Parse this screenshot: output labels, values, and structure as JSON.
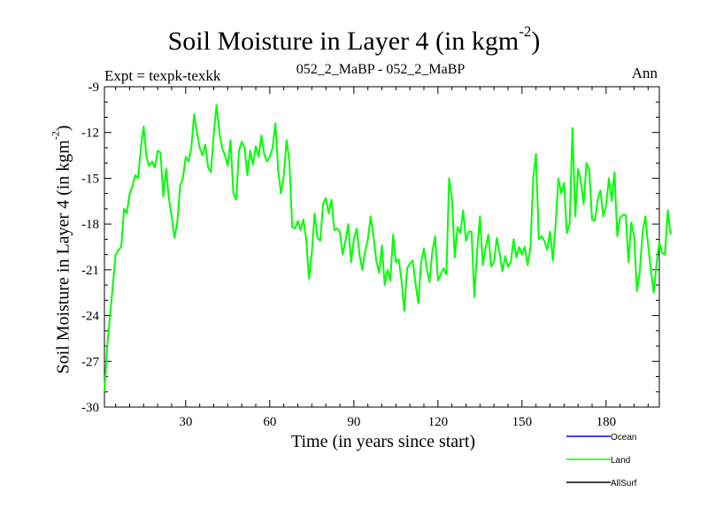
{
  "chart_data": {
    "type": "line",
    "title": "Soil Moisture in Layer 4 (in kgm",
    "title_exp": "-2",
    "subtitle": "052_2_MaBP - 052_2_MaBP",
    "expt_label": "Expt = texpk-texkk",
    "season": "Ann",
    "xlabel": "Time (in years since start)",
    "ylabel": "Soil Moisture in Layer 4 (in kgm",
    "ylabel_exp": "-2",
    "ylabel_close": ")",
    "title_close": ")",
    "xlim": [
      1,
      199
    ],
    "ylim": [
      -30,
      -9
    ],
    "x_ticks": [
      30,
      60,
      90,
      120,
      150,
      180
    ],
    "x_tick_labels": [
      "30",
      "60",
      "90",
      "120",
      "150",
      "180"
    ],
    "y_ticks": [
      -30,
      -27,
      -24,
      -21,
      -18,
      -15,
      -12,
      -9
    ],
    "y_tick_labels": [
      "-30",
      "-27",
      "-24",
      "-21",
      "-18",
      "-15",
      "-12",
      "-9"
    ],
    "legend": [
      {
        "name": "Ocean",
        "color": "#0000ff"
      },
      {
        "name": "Land",
        "color": "#00ff00"
      },
      {
        "name": "AllSurf",
        "color": "#000000"
      }
    ],
    "series": [
      {
        "name": "Land",
        "color": "#00ff00",
        "x_start": 1,
        "values": [
          -29.0,
          -26.0,
          -24.0,
          -22.0,
          -20.0,
          -19.7,
          -19.5,
          -17.0,
          -17.3,
          -16.0,
          -15.5,
          -14.8,
          -15.0,
          -13.0,
          -11.6,
          -13.6,
          -14.2,
          -13.9,
          -14.3,
          -13.2,
          -13.3,
          -16.2,
          -14.4,
          -16.3,
          -17.5,
          -18.9,
          -17.9,
          -15.5,
          -15.0,
          -13.6,
          -13.9,
          -13.0,
          -10.8,
          -12.0,
          -13.0,
          -13.5,
          -12.8,
          -14.3,
          -14.6,
          -12.1,
          -10.2,
          -12.0,
          -13.0,
          -13.5,
          -14.2,
          -12.5,
          -16.0,
          -16.4,
          -13.2,
          -12.6,
          -13.0,
          -14.8,
          -13.2,
          -14.1,
          -12.9,
          -13.6,
          -12.2,
          -13.4,
          -13.9,
          -13.6,
          -13.0,
          -11.4,
          -14.5,
          -16.0,
          -14.8,
          -12.5,
          -13.9,
          -18.2,
          -18.3,
          -17.8,
          -18.4,
          -17.7,
          -19.0,
          -21.6,
          -19.9,
          -17.3,
          -18.9,
          -19.1,
          -16.7,
          -16.3,
          -17.3,
          -16.4,
          -18.4,
          -18.3,
          -18.5,
          -20.0,
          -19.1,
          -18.0,
          -20.5,
          -19.0,
          -18.3,
          -20.0,
          -21.0,
          -19.8,
          -19.0,
          -17.5,
          -18.8,
          -20.4,
          -21.2,
          -19.4,
          -22.0,
          -21.0,
          -21.7,
          -18.7,
          -20.5,
          -20.3,
          -21.7,
          -23.7,
          -20.9,
          -20.6,
          -20.4,
          -21.9,
          -23.2,
          -20.5,
          -19.6,
          -20.9,
          -21.8,
          -19.8,
          -18.8,
          -21.7,
          -21.3,
          -20.9,
          -21.3,
          -15.0,
          -16.3,
          -20.2,
          -18.2,
          -18.6,
          -17.1,
          -19.1,
          -18.5,
          -18.5,
          -22.8,
          -19.7,
          -17.5,
          -20.7,
          -19.6,
          -18.7,
          -20.8,
          -20.5,
          -18.9,
          -19.9,
          -21.1,
          -20.1,
          -20.8,
          -20.5,
          -19.0,
          -20.2,
          -19.5,
          -20.0,
          -19.5,
          -20.7,
          -19.6,
          -15.0,
          -13.4,
          -19.0,
          -18.8,
          -19.1,
          -19.7,
          -18.5,
          -20.4,
          -18.0,
          -15.0,
          -16.0,
          -15.3,
          -18.6,
          -18.0,
          -11.7,
          -17.5,
          -14.4,
          -15.2,
          -16.7,
          -14.0,
          -14.4,
          -17.7,
          -17.8,
          -16.4,
          -15.8,
          -17.5,
          -16.8,
          -15.0,
          -16.5,
          -14.6,
          -18.8,
          -17.6,
          -17.4,
          -17.4,
          -20.5,
          -17.9,
          -18.8,
          -22.4,
          -21.2,
          -18.6,
          -17.5,
          -19.4,
          -21.0,
          -22.5,
          -20.6,
          -19.2,
          -19.9,
          -20.0,
          -17.1,
          -18.7
        ]
      }
    ]
  }
}
